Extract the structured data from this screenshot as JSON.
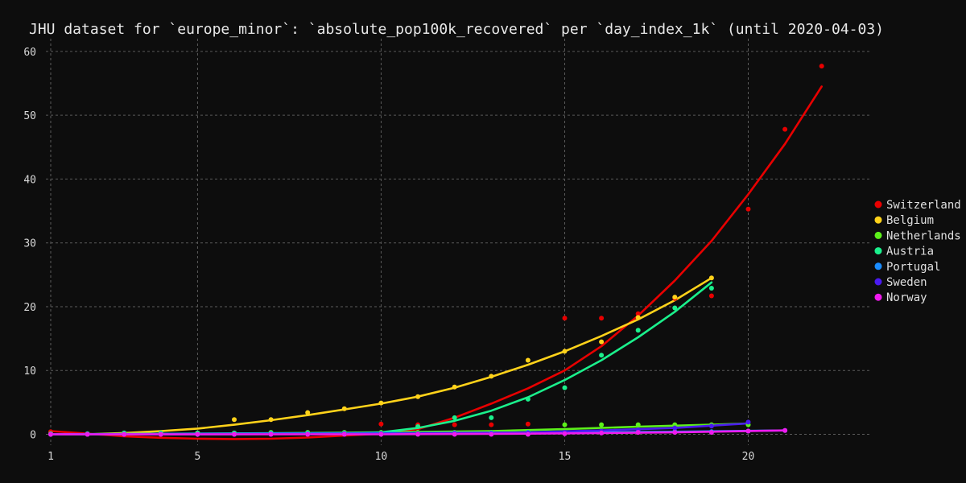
{
  "chart_data": {
    "type": "scatter",
    "title": "JHU dataset for `europe_minor`: `absolute_pop100k_recovered` per `day_index_1k` (until 2020-04-03)",
    "xlabel": "",
    "ylabel": "",
    "xlim": [
      1,
      23.3
    ],
    "ylim": [
      -1.2,
      61.5
    ],
    "xticks": [
      1,
      5,
      10,
      15,
      20
    ],
    "yticks": [
      0,
      10,
      20,
      30,
      40,
      50,
      60
    ],
    "grid": true,
    "legend_position": "right",
    "series": [
      {
        "name": "Switzerland",
        "color": "#e80000",
        "points": [
          [
            1,
            0.4
          ],
          [
            2,
            0.0
          ],
          [
            3,
            0.1
          ],
          [
            4,
            0.1
          ],
          [
            5,
            0.2
          ],
          [
            6,
            0.2
          ],
          [
            7,
            0.2
          ],
          [
            8,
            0.2
          ],
          [
            9,
            0.2
          ],
          [
            10,
            1.6
          ],
          [
            11,
            1.5
          ],
          [
            12,
            1.5
          ],
          [
            13,
            1.5
          ],
          [
            14,
            1.6
          ],
          [
            15,
            18.2
          ],
          [
            16,
            18.2
          ],
          [
            17,
            18.9
          ],
          [
            18,
            21.3
          ],
          [
            19,
            21.7
          ],
          [
            20,
            35.3
          ],
          [
            21,
            47.8
          ],
          [
            22,
            57.7
          ]
        ],
        "trend": [
          [
            1,
            0.5
          ],
          [
            2,
            0.1
          ],
          [
            3,
            -0.3
          ],
          [
            4,
            -0.55
          ],
          [
            5,
            -0.7
          ],
          [
            6,
            -0.75
          ],
          [
            7,
            -0.7
          ],
          [
            8,
            -0.5
          ],
          [
            9,
            -0.2
          ],
          [
            10,
            0.1
          ],
          [
            11,
            0.8
          ],
          [
            12,
            2.6
          ],
          [
            13,
            4.8
          ],
          [
            14,
            7.2
          ],
          [
            15,
            10.0
          ],
          [
            16,
            13.8
          ],
          [
            17,
            18.6
          ],
          [
            18,
            24.1
          ],
          [
            19,
            30.3
          ],
          [
            20,
            37.6
          ],
          [
            21,
            45.5
          ],
          [
            22,
            54.5
          ]
        ]
      },
      {
        "name": "Belgium",
        "color": "#ffd21a",
        "points": [
          [
            1,
            0.1
          ],
          [
            2,
            0.0
          ],
          [
            3,
            0.1
          ],
          [
            4,
            0.1
          ],
          [
            5,
            0.2
          ],
          [
            6,
            2.3
          ],
          [
            7,
            2.3
          ],
          [
            8,
            3.4
          ],
          [
            9,
            4.0
          ],
          [
            10,
            4.9
          ],
          [
            11,
            5.9
          ],
          [
            12,
            7.4
          ],
          [
            13,
            9.1
          ],
          [
            14,
            11.6
          ],
          [
            15,
            13.0
          ],
          [
            16,
            14.5
          ],
          [
            17,
            18.3
          ],
          [
            18,
            21.5
          ],
          [
            19,
            24.5
          ]
        ],
        "trend": [
          [
            1,
            0.0
          ],
          [
            2,
            0.0
          ],
          [
            3,
            0.2
          ],
          [
            4,
            0.5
          ],
          [
            5,
            0.9
          ],
          [
            6,
            1.5
          ],
          [
            7,
            2.2
          ],
          [
            8,
            3.0
          ],
          [
            9,
            3.9
          ],
          [
            10,
            4.8
          ],
          [
            11,
            5.9
          ],
          [
            12,
            7.3
          ],
          [
            13,
            9.0
          ],
          [
            14,
            10.9
          ],
          [
            15,
            13.0
          ],
          [
            16,
            15.4
          ],
          [
            17,
            18.0
          ],
          [
            18,
            21.0
          ],
          [
            19,
            24.5
          ]
        ]
      },
      {
        "name": "Netherlands",
        "color": "#5cf01a",
        "points": [
          [
            1,
            0.0
          ],
          [
            2,
            0.0
          ],
          [
            3,
            0.2
          ],
          [
            4,
            0.2
          ],
          [
            5,
            0.2
          ],
          [
            6,
            0.2
          ],
          [
            7,
            0.3
          ],
          [
            8,
            0.3
          ],
          [
            9,
            0.3
          ],
          [
            10,
            0.3
          ],
          [
            11,
            0.3
          ],
          [
            12,
            0.3
          ],
          [
            13,
            0.3
          ],
          [
            14,
            0.3
          ],
          [
            15,
            1.5
          ],
          [
            16,
            1.5
          ],
          [
            17,
            1.5
          ],
          [
            18,
            1.5
          ],
          [
            19,
            1.5
          ],
          [
            20,
            1.5
          ]
        ],
        "trend": [
          [
            1,
            0.0
          ],
          [
            5,
            0.1
          ],
          [
            10,
            0.3
          ],
          [
            13,
            0.5
          ],
          [
            15,
            0.8
          ],
          [
            17,
            1.2
          ],
          [
            19,
            1.5
          ],
          [
            20,
            1.7
          ]
        ]
      },
      {
        "name": "Austria",
        "color": "#1af08c",
        "points": [
          [
            1,
            0.1
          ],
          [
            2,
            0.1
          ],
          [
            3,
            0.2
          ],
          [
            4,
            0.2
          ],
          [
            5,
            0.2
          ],
          [
            6,
            0.2
          ],
          [
            7,
            0.2
          ],
          [
            8,
            0.2
          ],
          [
            9,
            0.2
          ],
          [
            10,
            0.2
          ],
          [
            11,
            1.2
          ],
          [
            12,
            2.6
          ],
          [
            13,
            2.6
          ],
          [
            14,
            5.5
          ],
          [
            15,
            7.3
          ],
          [
            16,
            12.4
          ],
          [
            17,
            16.3
          ],
          [
            18,
            19.8
          ],
          [
            19,
            22.9
          ]
        ],
        "trend": [
          [
            1,
            0.0
          ],
          [
            5,
            0.0
          ],
          [
            9,
            0.1
          ],
          [
            10,
            0.3
          ],
          [
            11,
            1.0
          ],
          [
            12,
            2.1
          ],
          [
            13,
            3.7
          ],
          [
            14,
            5.8
          ],
          [
            15,
            8.5
          ],
          [
            16,
            11.6
          ],
          [
            17,
            15.2
          ],
          [
            18,
            19.2
          ],
          [
            19,
            23.8
          ]
        ]
      },
      {
        "name": "Portugal",
        "color": "#1a8cff",
        "points": [
          [
            1,
            0.0
          ],
          [
            2,
            0.0
          ],
          [
            3,
            0.0
          ],
          [
            4,
            0.0
          ],
          [
            5,
            0.0
          ],
          [
            6,
            0.0
          ],
          [
            7,
            0.1
          ],
          [
            8,
            0.1
          ],
          [
            9,
            0.1
          ],
          [
            10,
            0.1
          ],
          [
            11,
            0.1
          ],
          [
            12,
            0.2
          ],
          [
            13,
            0.2
          ],
          [
            14,
            0.3
          ],
          [
            15,
            0.3
          ],
          [
            16,
            0.3
          ],
          [
            17,
            0.4
          ],
          [
            18,
            0.4
          ],
          [
            19,
            0.4
          ],
          [
            20,
            0.5
          ],
          [
            21,
            0.6
          ]
        ],
        "trend": [
          [
            1,
            0.0
          ],
          [
            5,
            0.1
          ],
          [
            10,
            0.2
          ],
          [
            15,
            0.3
          ],
          [
            18,
            0.4
          ],
          [
            21,
            0.6
          ]
        ]
      },
      {
        "name": "Sweden",
        "color": "#4a1af0",
        "points": [
          [
            1,
            0.0
          ],
          [
            2,
            0.0
          ],
          [
            3,
            0.0
          ],
          [
            4,
            0.0
          ],
          [
            5,
            0.0
          ],
          [
            6,
            0.0
          ],
          [
            7,
            0.0
          ],
          [
            8,
            0.0
          ],
          [
            9,
            0.1
          ],
          [
            10,
            0.1
          ],
          [
            11,
            0.1
          ],
          [
            12,
            0.1
          ],
          [
            13,
            0.1
          ],
          [
            14,
            0.2
          ],
          [
            15,
            0.3
          ],
          [
            16,
            0.5
          ],
          [
            17,
            0.7
          ],
          [
            18,
            1.0
          ],
          [
            19,
            1.3
          ],
          [
            20,
            1.9
          ]
        ],
        "trend": [
          [
            1,
            0.0
          ],
          [
            5,
            0.0
          ],
          [
            10,
            0.1
          ],
          [
            14,
            0.3
          ],
          [
            16,
            0.6
          ],
          [
            18,
            1.0
          ],
          [
            20,
            1.7
          ]
        ]
      },
      {
        "name": "Norway",
        "color": "#f01aee",
        "points": [
          [
            1,
            0.0
          ],
          [
            2,
            0.0
          ],
          [
            3,
            0.0
          ],
          [
            4,
            0.0
          ],
          [
            5,
            0.0
          ],
          [
            6,
            0.0
          ],
          [
            7,
            0.0
          ],
          [
            8,
            0.0
          ],
          [
            9,
            0.0
          ],
          [
            10,
            0.0
          ],
          [
            11,
            0.0
          ],
          [
            12,
            0.0
          ],
          [
            13,
            0.0
          ],
          [
            14,
            0.0
          ],
          [
            15,
            0.1
          ],
          [
            16,
            0.2
          ],
          [
            17,
            0.3
          ],
          [
            18,
            0.3
          ],
          [
            19,
            0.3
          ],
          [
            20,
            0.5
          ],
          [
            21,
            0.6
          ]
        ],
        "trend": [
          [
            1,
            0.0
          ],
          [
            10,
            0.0
          ],
          [
            14,
            0.1
          ],
          [
            16,
            0.2
          ],
          [
            18,
            0.3
          ],
          [
            21,
            0.6
          ]
        ]
      }
    ]
  }
}
